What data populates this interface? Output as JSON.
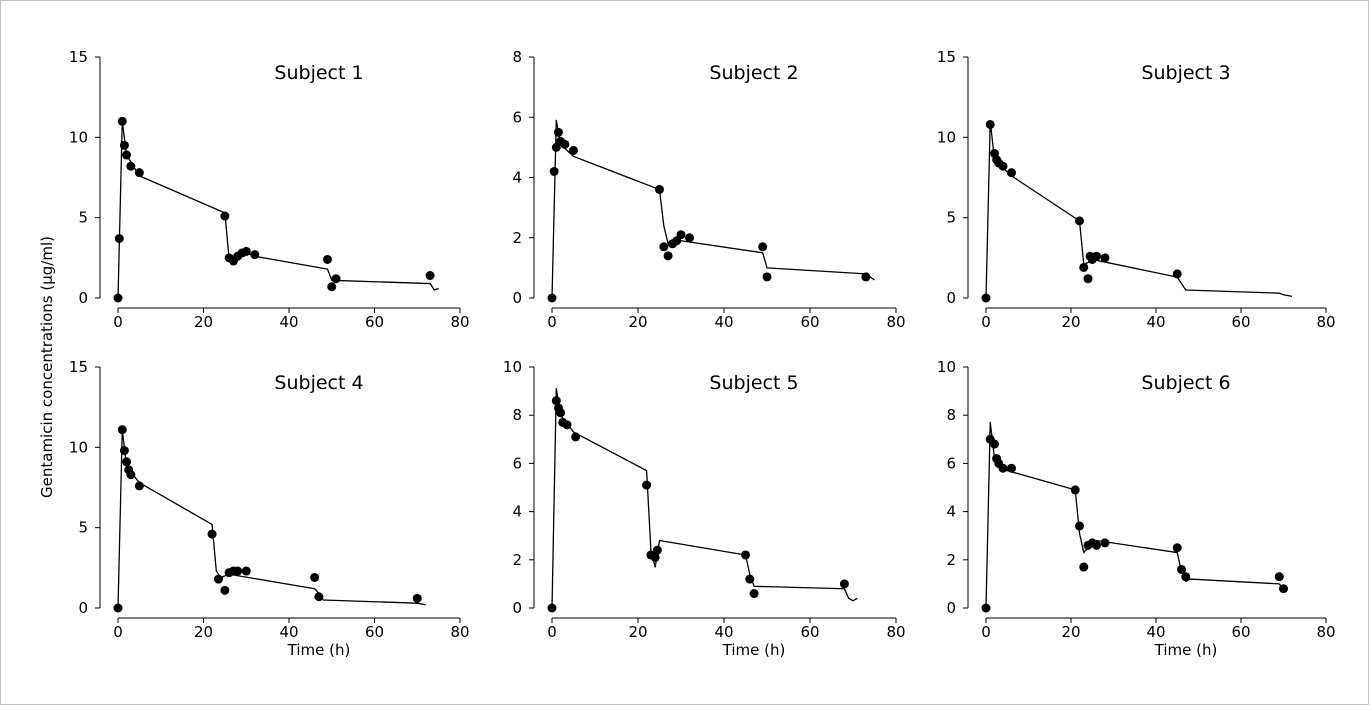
{
  "figure": {
    "ylabel": "Gentamicin concentrations (μg/ml)",
    "xlabel": "Time (h)"
  },
  "chart_data": [
    {
      "type": "scatter",
      "title": "Subject 1",
      "xlim": [
        0,
        80
      ],
      "ylim": [
        0,
        15
      ],
      "xticks": [
        0,
        20,
        40,
        60,
        80
      ],
      "yticks": [
        0,
        5,
        10,
        15
      ],
      "series": [
        {
          "kind": "points",
          "x": [
            0,
            0.3,
            1,
            1.5,
            2,
            3,
            5,
            25,
            26,
            27,
            28,
            29,
            30,
            32,
            49,
            50,
            51,
            73
          ],
          "y": [
            0,
            3.7,
            11,
            9.5,
            8.9,
            8.2,
            7.8,
            5.1,
            2.5,
            2.3,
            2.6,
            2.8,
            2.9,
            2.7,
            2.4,
            0.7,
            1.2,
            1.4
          ]
        },
        {
          "kind": "line",
          "x": [
            0,
            1,
            2,
            5,
            25,
            26,
            27,
            29,
            32,
            49,
            50,
            73,
            74,
            75
          ],
          "y": [
            0,
            11,
            8.9,
            7.6,
            5.3,
            2.4,
            2.3,
            2.9,
            2.6,
            1.8,
            1.1,
            0.9,
            0.5,
            0.6
          ]
        }
      ]
    },
    {
      "type": "scatter",
      "title": "Subject 2",
      "xlim": [
        0,
        80
      ],
      "ylim": [
        0,
        8
      ],
      "xticks": [
        0,
        20,
        40,
        60,
        80
      ],
      "yticks": [
        0,
        2,
        4,
        6,
        8
      ],
      "series": [
        {
          "kind": "points",
          "x": [
            0,
            0.5,
            1,
            1.5,
            2,
            3,
            5,
            25,
            26,
            27,
            28,
            29,
            30,
            32,
            49,
            50,
            73
          ],
          "y": [
            0,
            4.2,
            5,
            5.5,
            5.2,
            5.1,
            4.9,
            3.6,
            1.7,
            1.4,
            1.8,
            1.9,
            2.1,
            2,
            1.7,
            0.7,
            0.7
          ]
        },
        {
          "kind": "line",
          "x": [
            0,
            1,
            2,
            5,
            25,
            26,
            27,
            30,
            49,
            50,
            73,
            75
          ],
          "y": [
            0,
            5.9,
            5.1,
            4.7,
            3.6,
            2.4,
            1.8,
            1.9,
            1.5,
            1,
            0.8,
            0.6
          ]
        }
      ]
    },
    {
      "type": "scatter",
      "title": "Subject 3",
      "xlim": [
        0,
        80
      ],
      "ylim": [
        0,
        15
      ],
      "xticks": [
        0,
        20,
        40,
        60,
        80
      ],
      "yticks": [
        0,
        5,
        10,
        15
      ],
      "series": [
        {
          "kind": "points",
          "x": [
            0,
            1,
            2,
            2.5,
            3,
            4,
            6,
            22,
            23,
            24,
            25,
            26,
            28,
            45,
            24.5
          ],
          "y": [
            0,
            10.8,
            9,
            8.6,
            8.4,
            8.2,
            7.8,
            4.8,
            1.9,
            1.2,
            2.4,
            2.6,
            2.5,
            1.5,
            2.6
          ]
        },
        {
          "kind": "line",
          "x": [
            0,
            1,
            2,
            6,
            22,
            23,
            24,
            25,
            45,
            46,
            47,
            69,
            70,
            72
          ],
          "y": [
            0,
            11,
            8.6,
            7.6,
            4.8,
            2.1,
            2.2,
            2.4,
            1.3,
            0.9,
            0.5,
            0.3,
            0.2,
            0.1
          ]
        }
      ]
    },
    {
      "type": "scatter",
      "title": "Subject 4",
      "xlim": [
        0,
        80
      ],
      "ylim": [
        0,
        15
      ],
      "xticks": [
        0,
        20,
        40,
        60,
        80
      ],
      "yticks": [
        0,
        5,
        10,
        15
      ],
      "series": [
        {
          "kind": "points",
          "x": [
            0,
            1,
            1.5,
            2,
            2.5,
            3,
            5,
            22,
            23.5,
            25,
            26,
            27,
            28,
            30,
            46,
            47,
            70
          ],
          "y": [
            0,
            11.1,
            9.8,
            9.1,
            8.6,
            8.3,
            7.6,
            4.6,
            1.8,
            1.1,
            2.2,
            2.3,
            2.3,
            2.3,
            1.9,
            0.7,
            0.6
          ]
        },
        {
          "kind": "line",
          "x": [
            0,
            1,
            2,
            5,
            22,
            23,
            24,
            26,
            46,
            47,
            48,
            70,
            72
          ],
          "y": [
            0,
            11.1,
            8.8,
            7.8,
            5.2,
            2.3,
            1.9,
            2.1,
            1.2,
            0.9,
            0.5,
            0.3,
            0.2
          ]
        }
      ]
    },
    {
      "type": "scatter",
      "title": "Subject 5",
      "xlim": [
        0,
        80
      ],
      "ylim": [
        0,
        10
      ],
      "xticks": [
        0,
        20,
        40,
        60,
        80
      ],
      "yticks": [
        0,
        2,
        4,
        6,
        8,
        10
      ],
      "series": [
        {
          "kind": "points",
          "x": [
            0,
            1,
            1.5,
            2,
            2.5,
            3.5,
            5.5,
            22,
            23,
            24,
            24.5,
            45,
            46,
            47,
            68
          ],
          "y": [
            0,
            8.6,
            8.3,
            8.1,
            7.7,
            7.6,
            7.1,
            5.1,
            2.2,
            2.1,
            2.4,
            2.2,
            1.2,
            0.6,
            1
          ]
        },
        {
          "kind": "line",
          "x": [
            0,
            1,
            2,
            5,
            22,
            23,
            24,
            25,
            45,
            46,
            47,
            68,
            69,
            70,
            71
          ],
          "y": [
            0,
            9.1,
            8,
            7.3,
            5.7,
            2.4,
            1.7,
            2.8,
            2.2,
            1.4,
            0.9,
            0.8,
            0.4,
            0.3,
            0.4
          ]
        }
      ]
    },
    {
      "type": "scatter",
      "title": "Subject 6",
      "xlim": [
        0,
        80
      ],
      "ylim": [
        0,
        10
      ],
      "xticks": [
        0,
        20,
        40,
        60,
        80
      ],
      "yticks": [
        0,
        2,
        4,
        6,
        8,
        10
      ],
      "series": [
        {
          "kind": "points",
          "x": [
            0,
            1,
            2,
            2.5,
            3,
            4,
            6,
            21,
            22,
            23,
            24,
            25,
            26,
            28,
            45,
            46,
            47,
            69,
            70
          ],
          "y": [
            0,
            7,
            6.8,
            6.2,
            6,
            5.8,
            5.8,
            4.9,
            3.4,
            1.7,
            2.6,
            2.7,
            2.6,
            2.7,
            2.5,
            1.6,
            1.3,
            1.3,
            0.8
          ]
        },
        {
          "kind": "line",
          "x": [
            0,
            1,
            2,
            5,
            21,
            22,
            23,
            24,
            26,
            45,
            46,
            47,
            48,
            69,
            70,
            71
          ],
          "y": [
            0,
            7.7,
            6.2,
            5.7,
            4.9,
            3.1,
            2.3,
            2.5,
            2.8,
            2.3,
            1.5,
            1.1,
            1.2,
            1,
            0.8,
            0.8
          ]
        }
      ]
    }
  ]
}
